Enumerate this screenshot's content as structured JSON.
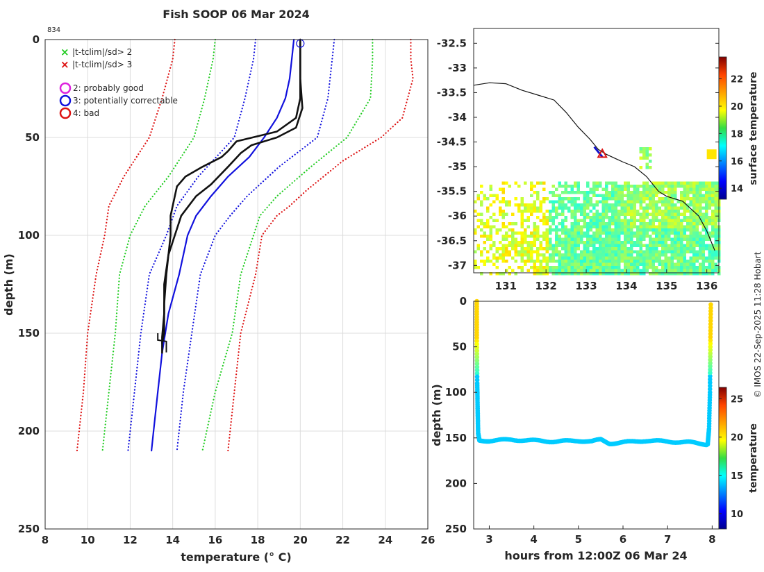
{
  "title": "Fish SOOP 06 Mar 2024",
  "profile_id": "834",
  "credit": "© IMOS 22-Sep-2025 11:28 Hobart",
  "legend": {
    "flags": [
      {
        "label": "|t-tclim|/sd> 2",
        "color": "#22cc22"
      },
      {
        "label": "|t-tclim|/sd> 3",
        "color": "#dd1111"
      }
    ],
    "qc": [
      {
        "label": "2: probably good",
        "color": "#dd22dd"
      },
      {
        "label": "3: potentially correctable",
        "color": "#1111dd"
      },
      {
        "label": "4: bad",
        "color": "#dd1111"
      }
    ]
  },
  "chart_data": [
    {
      "type": "line",
      "title": "Fish SOOP 06 Mar 2024",
      "xlabel": "temperature (° C)",
      "ylabel": "depth (m)",
      "xlim": [
        8,
        26
      ],
      "ylim": [
        250,
        0
      ],
      "xticks": [
        "8",
        "10",
        "12",
        "14",
        "16",
        "18",
        "20",
        "22",
        "24",
        "26"
      ],
      "yticks": [
        "0",
        "50",
        "100",
        "150",
        "200",
        "250"
      ],
      "grid": true,
      "series": [
        {
          "name": "clim -3sd",
          "style": "dotted",
          "color": "#dd1111",
          "points": [
            [
              14.1,
              0
            ],
            [
              14.0,
              10
            ],
            [
              13.5,
              30
            ],
            [
              12.9,
              50
            ],
            [
              11.7,
              70
            ],
            [
              11.0,
              85
            ],
            [
              10.8,
              100
            ],
            [
              10.4,
              120
            ],
            [
              10.0,
              150
            ],
            [
              9.8,
              180
            ],
            [
              9.5,
              210
            ]
          ]
        },
        {
          "name": "clim -2sd",
          "style": "dotted",
          "color": "#22cc22",
          "points": [
            [
              16.0,
              0
            ],
            [
              15.9,
              10
            ],
            [
              15.5,
              30
            ],
            [
              15.0,
              50
            ],
            [
              13.8,
              70
            ],
            [
              12.7,
              85
            ],
            [
              12.0,
              100
            ],
            [
              11.5,
              120
            ],
            [
              11.3,
              150
            ],
            [
              11.0,
              180
            ],
            [
              10.7,
              210
            ]
          ]
        },
        {
          "name": "clim -1sd",
          "style": "dotted",
          "color": "#1111dd",
          "points": [
            [
              17.9,
              0
            ],
            [
              17.8,
              10
            ],
            [
              17.4,
              30
            ],
            [
              16.9,
              50
            ],
            [
              15.2,
              70
            ],
            [
              14.2,
              85
            ],
            [
              13.7,
              100
            ],
            [
              12.9,
              120
            ],
            [
              12.5,
              150
            ],
            [
              12.2,
              180
            ],
            [
              11.9,
              210
            ]
          ]
        },
        {
          "name": "clim +1sd",
          "style": "dotted",
          "color": "#1111dd",
          "points": [
            [
              21.6,
              0
            ],
            [
              21.5,
              10
            ],
            [
              21.3,
              30
            ],
            [
              20.8,
              50
            ],
            [
              19.0,
              65
            ],
            [
              17.5,
              80
            ],
            [
              16.7,
              90
            ],
            [
              16.0,
              100
            ],
            [
              15.3,
              120
            ],
            [
              14.9,
              150
            ],
            [
              14.5,
              180
            ],
            [
              14.2,
              210
            ]
          ]
        },
        {
          "name": "clim +2sd",
          "style": "dotted",
          "color": "#22cc22",
          "points": [
            [
              23.4,
              0
            ],
            [
              23.4,
              10
            ],
            [
              23.3,
              30
            ],
            [
              22.2,
              50
            ],
            [
              20.5,
              65
            ],
            [
              18.9,
              80
            ],
            [
              18.1,
              90
            ],
            [
              17.8,
              100
            ],
            [
              17.2,
              120
            ],
            [
              16.8,
              150
            ],
            [
              16.0,
              180
            ],
            [
              15.4,
              210
            ]
          ]
        },
        {
          "name": "clim +3sd",
          "style": "dotted",
          "color": "#dd1111",
          "points": [
            [
              25.2,
              0
            ],
            [
              25.2,
              10
            ],
            [
              25.3,
              20
            ],
            [
              24.8,
              40
            ],
            [
              23.8,
              50
            ],
            [
              22.0,
              62
            ],
            [
              20.3,
              77
            ],
            [
              19.5,
              85
            ],
            [
              18.9,
              90
            ],
            [
              18.2,
              100
            ],
            [
              17.9,
              120
            ],
            [
              17.2,
              150
            ],
            [
              16.9,
              180
            ],
            [
              16.6,
              210
            ]
          ]
        },
        {
          "name": "climatology mean",
          "style": "solid",
          "color": "#1111dd",
          "points": [
            [
              19.7,
              0
            ],
            [
              19.6,
              10
            ],
            [
              19.5,
              20
            ],
            [
              19.3,
              30
            ],
            [
              18.9,
              40
            ],
            [
              18.3,
              50
            ],
            [
              17.6,
              60
            ],
            [
              16.6,
              70
            ],
            [
              15.8,
              80
            ],
            [
              15.1,
              90
            ],
            [
              14.7,
              100
            ],
            [
              14.3,
              120
            ],
            [
              13.8,
              140
            ],
            [
              13.5,
              160
            ],
            [
              13.3,
              180
            ],
            [
              13.1,
              200
            ],
            [
              13.0,
              210
            ]
          ]
        },
        {
          "name": "profile down",
          "style": "solid",
          "color": "#111111",
          "points": [
            [
              20.0,
              0
            ],
            [
              20.0,
              20
            ],
            [
              20.0,
              30
            ],
            [
              19.8,
              40
            ],
            [
              18.9,
              47
            ],
            [
              17.0,
              52
            ],
            [
              16.6,
              57
            ],
            [
              16.3,
              60
            ],
            [
              15.4,
              65
            ],
            [
              14.6,
              70
            ],
            [
              14.2,
              75
            ],
            [
              14.1,
              80
            ],
            [
              13.9,
              90
            ],
            [
              13.9,
              100
            ],
            [
              13.8,
              110
            ],
            [
              13.7,
              120
            ],
            [
              13.6,
              135
            ],
            [
              13.6,
              150
            ],
            [
              13.5,
              155
            ]
          ]
        },
        {
          "name": "profile up",
          "style": "solid",
          "color": "#111111",
          "points": [
            [
              13.5,
              160
            ],
            [
              13.5,
              152
            ],
            [
              13.6,
              140
            ],
            [
              13.6,
              125
            ],
            [
              13.8,
              110
            ],
            [
              14.1,
              100
            ],
            [
              14.4,
              90
            ],
            [
              15.1,
              80
            ],
            [
              15.8,
              74
            ],
            [
              16.6,
              65
            ],
            [
              17.2,
              58
            ],
            [
              17.7,
              54
            ],
            [
              18.9,
              50
            ],
            [
              19.8,
              45
            ],
            [
              20.1,
              35
            ],
            [
              20.0,
              20
            ],
            [
              20.0,
              0
            ]
          ]
        }
      ],
      "markers": [
        {
          "name": "qc flag 3",
          "shape": "circle",
          "color": "#1111dd",
          "x": 20.0,
          "y": 2
        }
      ]
    },
    {
      "type": "heatmap",
      "xlim": [
        130.2,
        136.3
      ],
      "ylim": [
        -37.15,
        -32.2
      ],
      "xticks": [
        "131",
        "132",
        "133",
        "134",
        "135",
        "136"
      ],
      "yticks": [
        "-32.5",
        "-33",
        "-33.5",
        "-34",
        "-34.5",
        "-35",
        "-35.5",
        "-36",
        "-36.5",
        "-37"
      ],
      "colorbar": {
        "label": "surface temperature",
        "range": [
          13.2,
          23.6
        ],
        "ticks": [
          "14",
          "16",
          "18",
          "20",
          "22"
        ]
      },
      "track": [
        [
          133.2,
          -34.6
        ],
        [
          133.4,
          -34.8
        ]
      ],
      "drop_location": {
        "lon": 133.4,
        "lat": -34.75
      },
      "coastline": [
        [
          130.2,
          -33.35
        ],
        [
          130.6,
          -33.3
        ],
        [
          131.0,
          -33.32
        ],
        [
          131.4,
          -33.45
        ],
        [
          131.8,
          -33.55
        ],
        [
          132.2,
          -33.65
        ],
        [
          132.5,
          -33.9
        ],
        [
          132.8,
          -34.2
        ],
        [
          133.1,
          -34.45
        ],
        [
          133.3,
          -34.65
        ],
        [
          133.5,
          -34.75
        ],
        [
          133.9,
          -34.9
        ],
        [
          134.2,
          -35.0
        ],
        [
          134.5,
          -35.2
        ],
        [
          134.8,
          -35.5
        ],
        [
          135.0,
          -35.6
        ],
        [
          135.4,
          -35.7
        ],
        [
          135.8,
          -36.0
        ],
        [
          136.0,
          -36.3
        ],
        [
          136.2,
          -36.7
        ]
      ]
    },
    {
      "type": "scatter",
      "xlabel": "hours from 12:00Z 06 Mar 24",
      "ylabel": "depth (m)",
      "xlim": [
        2.65,
        8.15
      ],
      "ylim": [
        250,
        0
      ],
      "xticks": [
        "3",
        "4",
        "5",
        "6",
        "7",
        "8"
      ],
      "yticks": [
        "0",
        "50",
        "100",
        "150",
        "200",
        "250"
      ],
      "colorbar": {
        "label": "temperature",
        "range": [
          8,
          26.5
        ],
        "ticks": [
          "10",
          "15",
          "20",
          "25"
        ]
      },
      "series": [
        {
          "name": "descent",
          "points": [
            [
              2.72,
              0
            ],
            [
              2.72,
              40
            ],
            [
              2.73,
              90
            ],
            [
              2.74,
              120
            ],
            [
              2.75,
              145
            ],
            [
              2.78,
              153
            ]
          ]
        },
        {
          "name": "bottom",
          "points": [
            [
              2.78,
              153
            ],
            [
              3.0,
              153
            ],
            [
              3.5,
              152
            ],
            [
              4.0,
              153
            ],
            [
              4.5,
              154
            ],
            [
              5.0,
              153
            ],
            [
              5.3,
              154
            ],
            [
              5.5,
              152
            ],
            [
              5.7,
              156
            ],
            [
              6.0,
              155
            ],
            [
              6.5,
              153
            ],
            [
              7.0,
              154
            ],
            [
              7.5,
              155
            ],
            [
              7.9,
              157
            ]
          ]
        },
        {
          "name": "ascent",
          "points": [
            [
              7.9,
              157
            ],
            [
              7.93,
              140
            ],
            [
              7.95,
              100
            ],
            [
              7.96,
              50
            ],
            [
              7.97,
              0
            ]
          ]
        }
      ]
    }
  ]
}
